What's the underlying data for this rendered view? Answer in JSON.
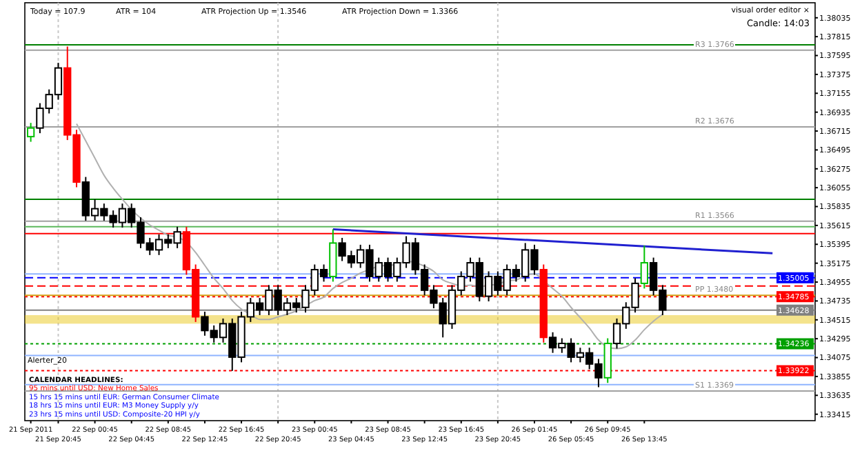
{
  "chart_data": {
    "type": "candlestick",
    "categories": [
      "21 Sep 2011",
      null,
      null,
      "21 Sep 20:45",
      null,
      null,
      null,
      "22 Sep 00:45",
      null,
      null,
      null,
      "22 Sep 04:45",
      null,
      null,
      null,
      "22 Sep 08:45",
      null,
      null,
      null,
      "22 Sep 12:45",
      null,
      null,
      null,
      "22 Sep 16:45",
      null,
      null,
      null,
      "22 Sep 20:45",
      null,
      null,
      null,
      "23 Sep 00:45",
      null,
      null,
      null,
      "23 Sep 04:45",
      null,
      null,
      null,
      "23 Sep 08:45",
      null,
      null,
      null,
      "23 Sep 12:45",
      null,
      null,
      null,
      "23 Sep 16:45",
      null,
      null,
      null,
      "23 Sep 20:45",
      null,
      null,
      null,
      "26 Sep 01:45",
      null,
      null,
      null,
      "26 Sep 05:45",
      null,
      null,
      null,
      "26 Sep 09:45",
      null,
      null,
      null,
      "26 Sep 13:45",
      null,
      null,
      null,
      null,
      null,
      null,
      null,
      null,
      null,
      null,
      null,
      null,
      null,
      null,
      null,
      null,
      null,
      null
    ],
    "ohlc": [
      [
        1.3665,
        1.3681,
        1.3659,
        1.3675
      ],
      [
        1.3675,
        1.3704,
        1.3669,
        1.3698
      ],
      [
        1.3698,
        1.372,
        1.3692,
        1.3714
      ],
      [
        1.3714,
        1.3751,
        1.3708,
        1.3745
      ],
      [
        1.3745,
        1.377,
        1.3661,
        1.3667
      ],
      [
        1.3667,
        1.3673,
        1.3606,
        1.3612
      ],
      [
        1.3612,
        1.3618,
        1.3567,
        1.3573
      ],
      [
        1.3573,
        1.3592,
        1.3567,
        1.3581
      ],
      [
        1.3581,
        1.3587,
        1.3567,
        1.3573
      ],
      [
        1.3573,
        1.3579,
        1.3559,
        1.3565
      ],
      [
        1.3565,
        1.3587,
        1.3559,
        1.3581
      ],
      [
        1.3581,
        1.3587,
        1.3559,
        1.3565
      ],
      [
        1.3565,
        1.3571,
        1.3535,
        1.3541
      ],
      [
        1.3541,
        1.3547,
        1.3527,
        1.3533
      ],
      [
        1.3533,
        1.3551,
        1.3527,
        1.3545
      ],
      [
        1.3545,
        1.3551,
        1.3535,
        1.3541
      ],
      [
        1.3541,
        1.356,
        1.3535,
        1.3554
      ],
      [
        1.3554,
        1.356,
        1.3504,
        1.351
      ],
      [
        1.351,
        1.3516,
        1.3449,
        1.3455
      ],
      [
        1.3455,
        1.3461,
        1.3433,
        1.3439
      ],
      [
        1.3439,
        1.3445,
        1.3425,
        1.3431
      ],
      [
        1.3431,
        1.3453,
        1.3425,
        1.3447
      ],
      [
        1.3447,
        1.3453,
        1.3392,
        1.3408
      ],
      [
        1.3408,
        1.3461,
        1.3402,
        1.3455
      ],
      [
        1.3455,
        1.3477,
        1.3449,
        1.3471
      ],
      [
        1.3471,
        1.3477,
        1.3457,
        1.3463
      ],
      [
        1.3463,
        1.3492,
        1.3457,
        1.3486
      ],
      [
        1.3486,
        1.3492,
        1.3457,
        1.3463
      ],
      [
        1.3463,
        1.3477,
        1.3457,
        1.3471
      ],
      [
        1.3471,
        1.3477,
        1.346,
        1.3466
      ],
      [
        1.3466,
        1.3492,
        1.346,
        1.3486
      ],
      [
        1.3486,
        1.3516,
        1.348,
        1.351
      ],
      [
        1.351,
        1.3516,
        1.3496,
        1.3502
      ],
      [
        1.3502,
        1.3557,
        1.3496,
        1.3541
      ],
      [
        1.3541,
        1.3547,
        1.352,
        1.3526
      ],
      [
        1.3526,
        1.3532,
        1.3512,
        1.3518
      ],
      [
        1.3518,
        1.3539,
        1.3512,
        1.3533
      ],
      [
        1.3533,
        1.3539,
        1.3496,
        1.3502
      ],
      [
        1.3502,
        1.3524,
        1.3496,
        1.3518
      ],
      [
        1.3518,
        1.3524,
        1.3496,
        1.3502
      ],
      [
        1.3502,
        1.3524,
        1.3496,
        1.3518
      ],
      [
        1.3518,
        1.3549,
        1.3512,
        1.3541
      ],
      [
        1.3541,
        1.3547,
        1.3504,
        1.351
      ],
      [
        1.351,
        1.3516,
        1.348,
        1.3486
      ],
      [
        1.3486,
        1.3492,
        1.3465,
        1.3471
      ],
      [
        1.3471,
        1.3477,
        1.3431,
        1.3447
      ],
      [
        1.3447,
        1.3492,
        1.3441,
        1.3486
      ],
      [
        1.3486,
        1.3508,
        1.348,
        1.3502
      ],
      [
        1.3502,
        1.3524,
        1.3496,
        1.3518
      ],
      [
        1.3518,
        1.3524,
        1.3473,
        1.3479
      ],
      [
        1.3479,
        1.3508,
        1.3473,
        1.3502
      ],
      [
        1.3502,
        1.3508,
        1.348,
        1.3486
      ],
      [
        1.3486,
        1.3516,
        1.348,
        1.351
      ],
      [
        1.351,
        1.3516,
        1.3496,
        1.3502
      ],
      [
        1.3502,
        1.3541,
        1.3496,
        1.3533
      ],
      [
        1.3533,
        1.3539,
        1.3504,
        1.351
      ],
      [
        1.351,
        1.3516,
        1.3425,
        1.3431
      ],
      [
        1.3431,
        1.3437,
        1.3413,
        1.3419
      ],
      [
        1.3419,
        1.343,
        1.3413,
        1.3424
      ],
      [
        1.3424,
        1.343,
        1.3402,
        1.3408
      ],
      [
        1.3408,
        1.3419,
        1.3402,
        1.3413
      ],
      [
        1.3413,
        1.3419,
        1.3394,
        1.34
      ],
      [
        1.34,
        1.3406,
        1.3373,
        1.3384
      ],
      [
        1.3384,
        1.343,
        1.3378,
        1.3424
      ],
      [
        1.3424,
        1.3453,
        1.3418,
        1.3447
      ],
      [
        1.3447,
        1.3472,
        1.3441,
        1.3466
      ],
      [
        1.3466,
        1.35,
        1.346,
        1.3494
      ],
      [
        1.3494,
        1.3538,
        1.3488,
        1.3518
      ],
      [
        1.3518,
        1.3524,
        1.348,
        1.3486
      ],
      [
        1.3486,
        1.3492,
        1.3457,
        1.3463
      ],
      null,
      null,
      null,
      null,
      null,
      null,
      null,
      null,
      null,
      null,
      null,
      null,
      null,
      null,
      null,
      null
    ],
    "colors": [
      "#00c000",
      "#000000",
      "#000000",
      "#000000",
      "#ff0000",
      "#ff0000",
      "#000000",
      "#000000",
      "#000000",
      "#000000",
      "#000000",
      "#000000",
      "#000000",
      "#000000",
      "#000000",
      "#000000",
      "#000000",
      "#ff0000",
      "#ff0000",
      "#000000",
      "#000000",
      "#000000",
      "#000000",
      "#000000",
      "#000000",
      "#000000",
      "#000000",
      "#000000",
      "#000000",
      "#000000",
      "#000000",
      "#000000",
      "#000000",
      "#00c000",
      "#000000",
      "#000000",
      "#000000",
      "#000000",
      "#000000",
      "#000000",
      "#000000",
      "#000000",
      "#000000",
      "#000000",
      "#000000",
      "#000000",
      "#000000",
      "#000000",
      "#000000",
      "#000000",
      "#000000",
      "#000000",
      "#000000",
      "#000000",
      "#000000",
      "#000000",
      "#ff0000",
      "#000000",
      "#000000",
      "#000000",
      "#000000",
      "#000000",
      "#000000",
      "#00c000",
      "#000000",
      "#000000",
      "#000000",
      "#00c000",
      "#000000",
      "#000000",
      null,
      null,
      null,
      null,
      null,
      null,
      null,
      null,
      null,
      null,
      null,
      null,
      null,
      null,
      null,
      null
    ],
    "series": [
      {
        "type": "line",
        "color": "#b0b0b0",
        "values": [
          null,
          null,
          null,
          null,
          null,
          1.368,
          1.366,
          1.364,
          1.362,
          1.3605,
          1.3592,
          1.358,
          1.357,
          1.3562,
          1.3556,
          1.355,
          1.3548,
          1.3542,
          1.353,
          1.3515,
          1.35,
          1.3488,
          1.3474,
          1.3464,
          1.3458,
          1.3452,
          1.3452,
          1.3455,
          1.3458,
          1.3462,
          1.3468,
          1.3474,
          1.3478,
          1.3488,
          1.3495,
          1.35,
          1.3506,
          1.351,
          1.3514,
          1.3515,
          1.3516,
          1.352,
          1.3518,
          1.3514,
          1.3508,
          1.3498,
          1.3494,
          1.3491,
          1.3492,
          1.349,
          1.3492,
          1.3493,
          1.3497,
          1.3498,
          1.3503,
          1.3505,
          1.3497,
          1.3488,
          1.3479,
          1.3466,
          1.3454,
          1.3442,
          1.3428,
          1.342,
          1.3418,
          1.342,
          1.3428,
          1.344,
          1.345,
          1.3458,
          null,
          null,
          null,
          null,
          null,
          null,
          null,
          null,
          null,
          null,
          null,
          null,
          null,
          null,
          null,
          null
        ]
      },
      {
        "type": "line",
        "color": "#2020d0",
        "values": [
          null,
          null,
          null,
          null,
          null,
          null,
          null,
          null,
          null,
          null,
          null,
          null,
          null,
          null,
          null,
          null,
          null,
          null,
          null,
          null,
          null,
          null,
          null,
          null,
          null,
          null,
          null,
          null,
          null,
          null,
          null,
          null,
          null,
          1.3557,
          null,
          null,
          null,
          null,
          null,
          null,
          null,
          null,
          null,
          null,
          null,
          null,
          null,
          null,
          null,
          null,
          null,
          null,
          null,
          null,
          null,
          null,
          null,
          null,
          null,
          null,
          null,
          null,
          null,
          null,
          null,
          null,
          null,
          null,
          null,
          null,
          null,
          null,
          null,
          null,
          null,
          null,
          null,
          null,
          null,
          null,
          null,
          1.3529,
          null,
          null,
          null,
          null
        ]
      }
    ],
    "ylim": [
      1.3334,
      1.3821
    ],
    "yticks": [
      1.38035,
      1.37815,
      1.37595,
      1.37375,
      1.37155,
      1.36935,
      1.36715,
      1.36495,
      1.36275,
      1.36055,
      1.35835,
      1.35615,
      1.35395,
      1.35175,
      1.34955,
      1.34735,
      1.34515,
      1.34295,
      1.34075,
      1.33855,
      1.33635,
      1.33415
    ],
    "grid": "x",
    "ref_lines": [
      {
        "axis": "y",
        "value": 1.3772,
        "color": "#008000"
      },
      {
        "axis": "y",
        "value": 1.3592,
        "color": "#008000"
      },
      {
        "axis": "y",
        "value": 1.356,
        "color": "#5cb85c"
      },
      {
        "axis": "y",
        "value": 1.3552,
        "color": "#ff0000"
      },
      {
        "axis": "y",
        "value": 1.3505,
        "color": "#8fb4ff"
      },
      {
        "axis": "y",
        "value": 1.35005,
        "label": "1.35005",
        "color": "#0000ff",
        "line_style": "dashed"
      },
      {
        "axis": "y",
        "value": 1.3491,
        "color": "#ff0000",
        "line_style": "dashed"
      },
      {
        "axis": "y",
        "value": 1.34785,
        "label": "1.34785",
        "color": "#ff0000",
        "line_style": "dotted"
      },
      {
        "axis": "y",
        "value": 1.34628,
        "label": "1.34628",
        "color": "#808080"
      },
      {
        "axis": "y",
        "value": 1.34236,
        "label": "1.34236",
        "color": "#00a000",
        "line_style": "dotted"
      },
      {
        "axis": "y",
        "value": 1.341,
        "color": "#8fb4ff"
      },
      {
        "axis": "y",
        "value": 1.33922,
        "label": "1.33922",
        "color": "#ff0000",
        "line_style": "dotted"
      },
      {
        "axis": "y",
        "value": 1.3376,
        "color": "#8fb4ff"
      },
      {
        "axis": "y",
        "value": 1.37658,
        "label": "R3 1.3766",
        "color": "#a0a0a0"
      },
      {
        "axis": "y",
        "value": 1.36763,
        "label": "R2 1.3676",
        "color": "#a0a0a0"
      },
      {
        "axis": "y",
        "value": 1.35664,
        "label": "R1 1.3566",
        "color": "#a0a0a0"
      },
      {
        "axis": "y",
        "value": 1.34801,
        "label": "PP 1.3480",
        "color": "#d4a017"
      },
      {
        "axis": "y",
        "value": 1.33686,
        "label": "S1 1.3369",
        "color": "#a0a0a0"
      }
    ],
    "bands": [
      {
        "axis": "y",
        "from": 1.3447,
        "to": 1.3457,
        "color": "#e6c000"
      }
    ],
    "annotations": [
      "Today = 107.9",
      "ATR = 104",
      "ATR Projection Up = 1.3546",
      "ATR Projection Down = 1.3366",
      "visual order editor ×",
      "Candle: 14:03",
      "Alerter_20",
      "CALENDAR HEADLINES:",
      "95 mins until USD: New Home Sales",
      "15 hrs 15 mins until EUR: German Consumer Climate",
      "18 hrs 15 mins until EUR: M3 Money Supply y/y",
      "23 hrs 15 mins until USD: Composite-20 HPI y/y"
    ]
  }
}
